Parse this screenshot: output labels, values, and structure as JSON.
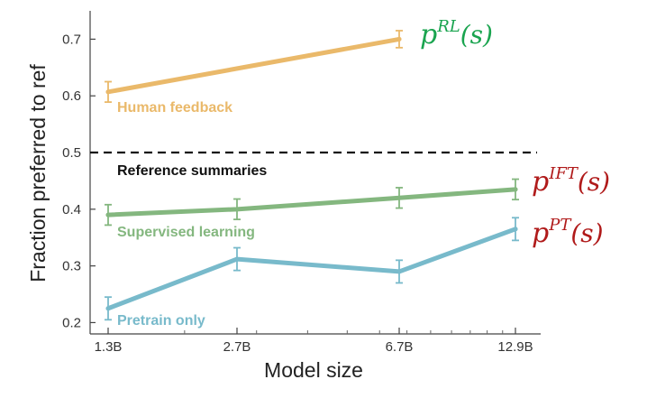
{
  "chart_data": {
    "type": "line",
    "title": "",
    "xlabel": "Model size",
    "ylabel": "Fraction preferred to ref",
    "x_scale": "log",
    "x": [
      1.3,
      2.7,
      6.7,
      12.9
    ],
    "x_ticks": [
      "1.3B",
      "2.7B",
      "6.7B",
      "12.9B"
    ],
    "ylim": [
      0.18,
      0.75
    ],
    "y_ticks": [
      "0.2",
      "0.3",
      "0.4",
      "0.5",
      "0.6",
      "0.7"
    ],
    "y_tick_values": [
      0.2,
      0.3,
      0.4,
      0.5,
      0.6,
      0.7
    ],
    "grid": false,
    "legend": "none",
    "reference": {
      "label": "Reference summaries",
      "value": 0.5,
      "color": "#111111",
      "style": "dashed"
    },
    "series": [
      {
        "name": "Human feedback",
        "color": "#eab96a",
        "x": [
          1.3,
          6.7
        ],
        "values": [
          0.607,
          0.7
        ],
        "err": [
          0.018,
          0.015
        ],
        "math_label": {
          "base": "p",
          "sup": "RL",
          "arg": "(s)",
          "color": "#1aa44f"
        }
      },
      {
        "name": "Supervised learning",
        "color": "#84b77f",
        "x": [
          1.3,
          2.7,
          6.7,
          12.9
        ],
        "values": [
          0.39,
          0.4,
          0.42,
          0.435
        ],
        "err": [
          0.018,
          0.018,
          0.018,
          0.018
        ],
        "math_label": {
          "base": "p",
          "sup": "IFT",
          "arg": "(s)",
          "color": "#b01a1a"
        }
      },
      {
        "name": "Pretrain only",
        "color": "#78bacb",
        "x": [
          1.3,
          2.7,
          6.7,
          12.9
        ],
        "values": [
          0.225,
          0.312,
          0.29,
          0.365
        ],
        "err": [
          0.02,
          0.02,
          0.02,
          0.02
        ],
        "math_label": {
          "base": "p",
          "sup": "PT",
          "arg": "(s)",
          "color": "#b01a1a"
        }
      }
    ]
  }
}
